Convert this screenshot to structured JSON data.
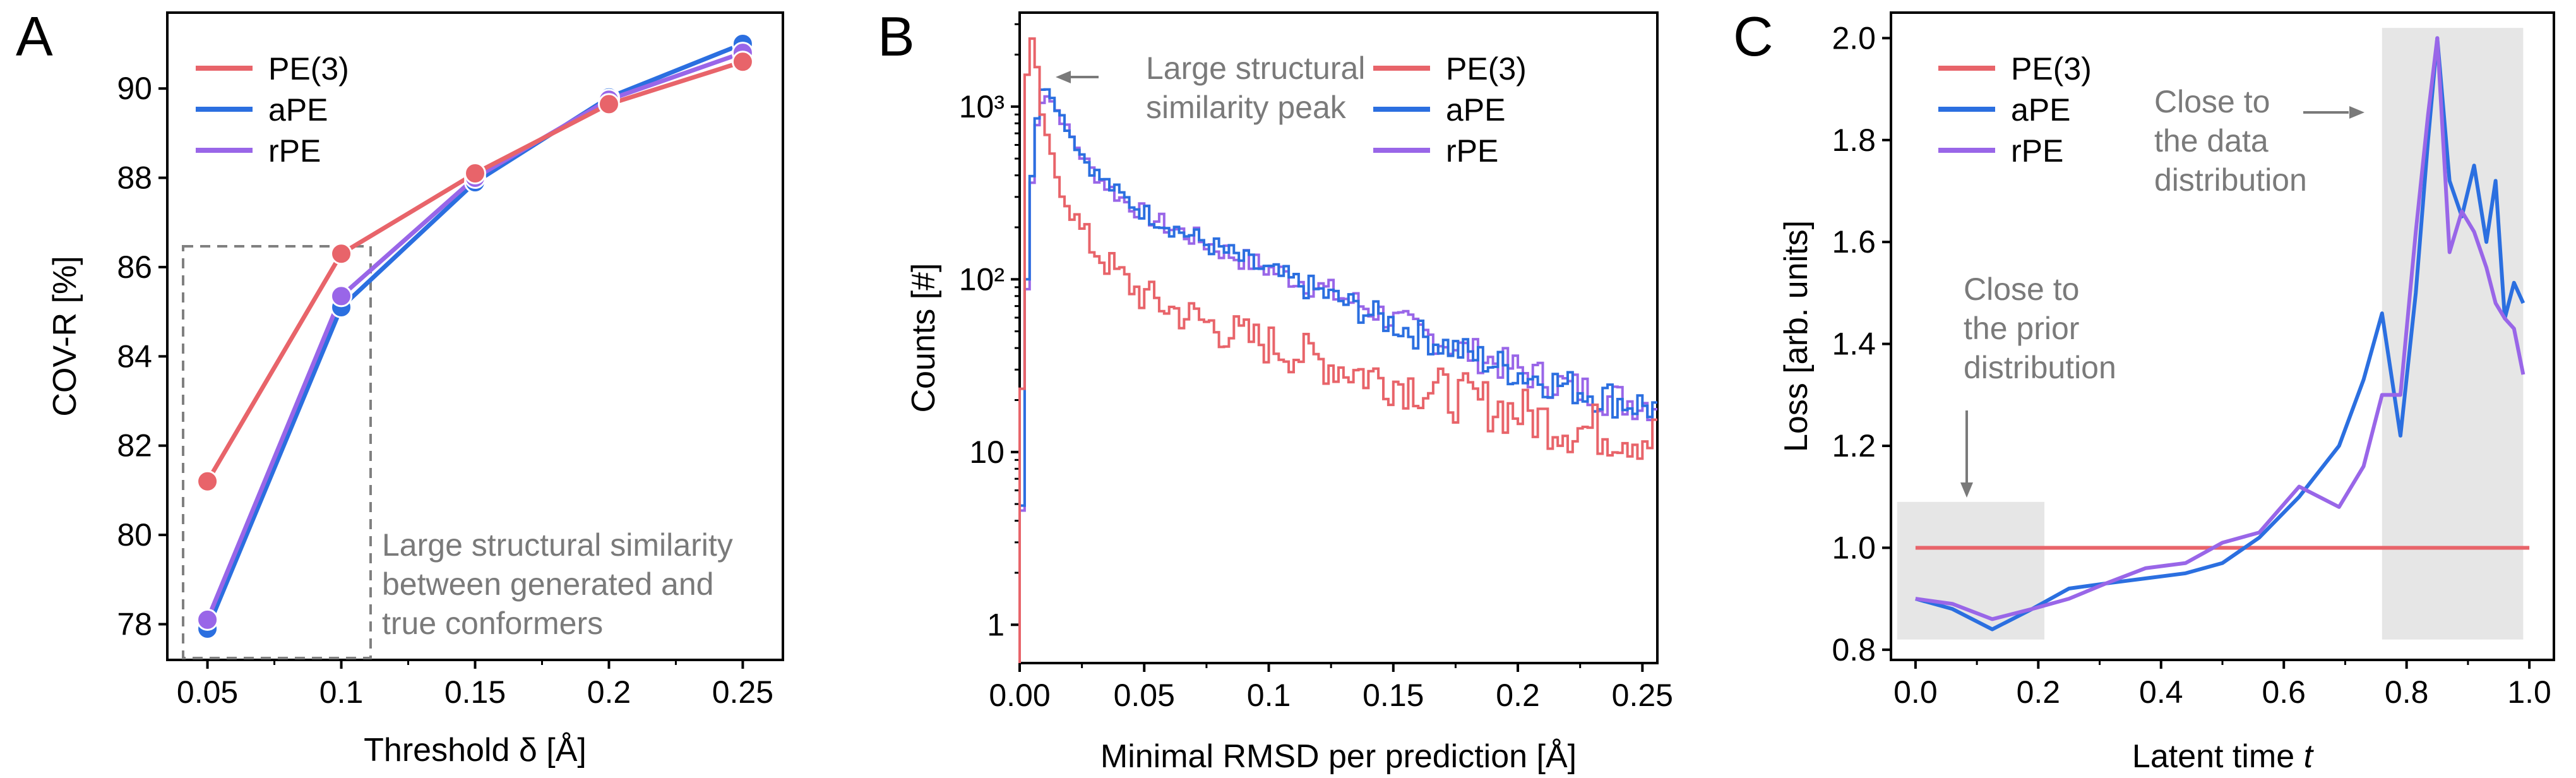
{
  "colors": {
    "PE(3)": "#e8646a",
    "aPE": "#2b6fe0",
    "rPE": "#9966e8",
    "annotation": "#7a7a7a",
    "shade": "#e6e6e6"
  },
  "panels": {
    "A": {
      "letter": "A",
      "annotation": [
        "Large structural similarity",
        "between generated and",
        "true conformers"
      ]
    },
    "B": {
      "letter": "B",
      "annotation": [
        "Large structural",
        "similarity peak"
      ]
    },
    "C": {
      "letter": "C",
      "annotation_prior": [
        "Close to",
        "the prior",
        "distribution"
      ],
      "annotation_data": [
        "Close to",
        "the data",
        "distribution"
      ]
    }
  },
  "chart_data": [
    {
      "id": "A",
      "type": "line",
      "xlabel": "Threshold δ [Å]",
      "ylabel": "COV-R [%]",
      "x": [
        0.05,
        0.1,
        0.15,
        0.2,
        0.25
      ],
      "xticks": [
        "0.05",
        "0.1",
        "0.15",
        "0.2",
        "0.25"
      ],
      "xlim": [
        0.035,
        0.265
      ],
      "ylim": [
        77.2,
        91.7
      ],
      "yticks": [
        78,
        80,
        82,
        84,
        86,
        88,
        90
      ],
      "legend": [
        "PE(3)",
        "aPE",
        "rPE"
      ],
      "series": [
        {
          "name": "aPE",
          "values": [
            77.9,
            85.1,
            87.9,
            89.8,
            91.0
          ]
        },
        {
          "name": "rPE",
          "values": [
            78.1,
            85.35,
            88.0,
            89.75,
            90.8
          ]
        },
        {
          "name": "PE(3)",
          "values": [
            81.2,
            86.3,
            88.1,
            89.65,
            90.6
          ]
        }
      ]
    },
    {
      "id": "B",
      "type": "line",
      "scale_y": "log",
      "xlabel": "Minimal RMSD per prediction [Å]",
      "ylabel": "Counts [#]",
      "xlim": [
        0,
        0.256
      ],
      "xticks": [
        0.0,
        0.05,
        0.1,
        0.15,
        0.2,
        0.25
      ],
      "xtick_labels": [
        "0.00",
        "0.05",
        "0.1",
        "0.15",
        "0.2",
        "0.25"
      ],
      "ylim": [
        0.6,
        3500
      ],
      "yticks": [
        1,
        10,
        100,
        1000
      ],
      "ytick_labels": [
        "1",
        "10",
        "10²",
        "10³"
      ],
      "legend": [
        "PE(3)",
        "aPE",
        "rPE"
      ],
      "series": [
        {
          "name": "rPE",
          "x": [
            0.0,
            0.002,
            0.004,
            0.006,
            0.008,
            0.01,
            0.012,
            0.015,
            0.02,
            0.025,
            0.03,
            0.04,
            0.05,
            0.06,
            0.07,
            0.08,
            0.09,
            0.1,
            0.12,
            0.14,
            0.16,
            0.18,
            0.2,
            0.22,
            0.24,
            0.256
          ],
          "values": [
            0.6,
            35,
            220,
            600,
            1000,
            1200,
            1150,
            950,
            700,
            520,
            410,
            300,
            240,
            200,
            175,
            150,
            130,
            115,
            90,
            68,
            50,
            38,
            30,
            24,
            20,
            19
          ]
        },
        {
          "name": "aPE",
          "x": [
            0.0,
            0.002,
            0.004,
            0.006,
            0.008,
            0.01,
            0.012,
            0.015,
            0.02,
            0.025,
            0.03,
            0.04,
            0.05,
            0.06,
            0.07,
            0.08,
            0.09,
            0.1,
            0.12,
            0.14,
            0.16,
            0.18,
            0.2,
            0.22,
            0.24,
            0.256
          ],
          "values": [
            0.6,
            40,
            250,
            700,
            1100,
            1350,
            1250,
            1000,
            720,
            530,
            420,
            310,
            245,
            205,
            175,
            150,
            128,
            110,
            85,
            64,
            48,
            37,
            29,
            24,
            20,
            18
          ]
        },
        {
          "name": "PE(3)",
          "x": [
            0.0,
            0.002,
            0.004,
            0.006,
            0.008,
            0.01,
            0.012,
            0.015,
            0.02,
            0.025,
            0.03,
            0.04,
            0.05,
            0.06,
            0.07,
            0.08,
            0.09,
            0.1,
            0.12,
            0.14,
            0.16,
            0.18,
            0.2,
            0.22,
            0.24,
            0.256
          ],
          "values": [
            0.6,
            900,
            2600,
            2200,
            1200,
            700,
            550,
            400,
            270,
            190,
            150,
            105,
            80,
            68,
            60,
            52,
            46,
            42,
            34,
            28,
            24,
            20,
            17,
            14,
            13,
            12
          ]
        }
      ]
    },
    {
      "id": "C",
      "type": "line",
      "xlabel": "Latent time ",
      "xlabel_italic": "t",
      "ylabel": "Loss [arb. units]",
      "xlim": [
        -0.04,
        1.04
      ],
      "xticks": [
        0.0,
        0.2,
        0.4,
        0.6,
        0.8,
        1.0
      ],
      "xtick_labels": [
        "0.0",
        "0.2",
        "0.4",
        "0.6",
        "0.8",
        "1.0"
      ],
      "ylim": [
        0.78,
        2.05
      ],
      "yticks": [
        0.8,
        1.0,
        1.2,
        1.4,
        1.6,
        1.8,
        2.0
      ],
      "ytick_labels": [
        "0.8",
        "1.0",
        "1.2",
        "1.4",
        "1.6",
        "1.8",
        "2.0"
      ],
      "shaded_regions": [
        {
          "x": [
            -0.03,
            0.21
          ],
          "y": [
            0.82,
            1.09
          ]
        },
        {
          "x": [
            0.76,
            0.99
          ],
          "y": [
            0.82,
            2.02
          ]
        }
      ],
      "legend": [
        "PE(3)",
        "aPE",
        "rPE"
      ],
      "series": [
        {
          "name": "PE(3)",
          "x": [
            0.0,
            1.0
          ],
          "values": [
            1.0,
            1.0
          ]
        },
        {
          "name": "aPE",
          "x": [
            0.0,
            0.06,
            0.125,
            0.19,
            0.25,
            0.31,
            0.375,
            0.44,
            0.5,
            0.56,
            0.625,
            0.69,
            0.73,
            0.76,
            0.79,
            0.815,
            0.835,
            0.85,
            0.87,
            0.89,
            0.91,
            0.93,
            0.945,
            0.96,
            0.975,
            0.99
          ],
          "values": [
            0.9,
            0.88,
            0.84,
            0.88,
            0.92,
            0.93,
            0.94,
            0.95,
            0.97,
            1.02,
            1.1,
            1.2,
            1.33,
            1.46,
            1.22,
            1.5,
            1.8,
            2.0,
            1.72,
            1.65,
            1.75,
            1.6,
            1.72,
            1.45,
            1.52,
            1.48
          ]
        },
        {
          "name": "rPE",
          "x": [
            0.0,
            0.06,
            0.125,
            0.19,
            0.25,
            0.31,
            0.375,
            0.44,
            0.5,
            0.56,
            0.625,
            0.69,
            0.73,
            0.76,
            0.79,
            0.815,
            0.835,
            0.85,
            0.87,
            0.89,
            0.91,
            0.93,
            0.945,
            0.96,
            0.975,
            0.99
          ],
          "values": [
            0.9,
            0.89,
            0.86,
            0.88,
            0.9,
            0.93,
            0.96,
            0.97,
            1.01,
            1.03,
            1.12,
            1.08,
            1.16,
            1.3,
            1.3,
            1.62,
            1.85,
            2.0,
            1.58,
            1.66,
            1.62,
            1.55,
            1.48,
            1.45,
            1.43,
            1.34
          ]
        }
      ]
    }
  ]
}
